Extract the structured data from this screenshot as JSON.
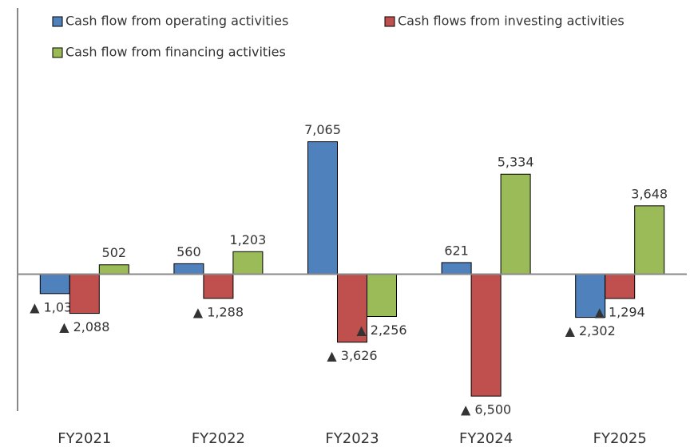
{
  "chart_data": {
    "type": "bar",
    "categories": [
      "FY2021",
      "FY2022",
      "FY2023",
      "FY2024",
      "FY2025"
    ],
    "series": [
      {
        "name": "Cash flow from operating activities",
        "color": "#4f81bd",
        "values": [
          -1035,
          560,
          7065,
          621,
          -2302
        ],
        "value_labels": [
          "▲ 1,035",
          "560",
          "7,065",
          "621",
          "▲ 2,302"
        ]
      },
      {
        "name": "Cash flows from investing activities",
        "color": "#c0504d",
        "values": [
          -2088,
          -1288,
          -3626,
          -6500,
          -1294
        ],
        "value_labels": [
          "▲ 2,088",
          "▲ 1,288",
          "▲ 3,626",
          "▲ 6,500",
          "▲ 1,294"
        ]
      },
      {
        "name": "Cash flow from financing activities",
        "color": "#9bbb59",
        "values": [
          502,
          1203,
          -2256,
          5334,
          3648
        ],
        "value_labels": [
          "502",
          "1,203",
          "▲ 2,256",
          "5,334",
          "3,648"
        ]
      }
    ],
    "ylim": [
      -7300,
      14200
    ]
  }
}
